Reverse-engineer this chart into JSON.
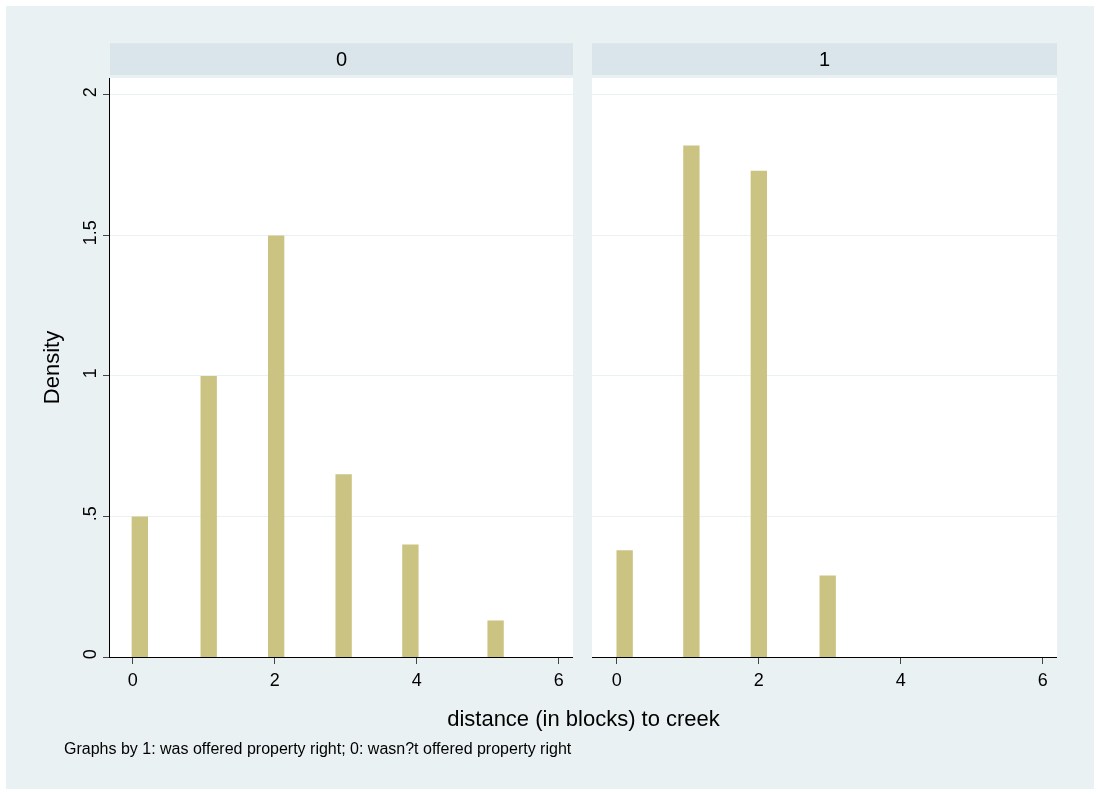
{
  "chart_data": [
    {
      "type": "bar",
      "title": "0",
      "ylabel": "Density",
      "xlabel": "distance (in blocks) to creek",
      "annotations": [
        "Graphs by 1: was offered property right; 0: wasn?t offered property right"
      ],
      "x": [
        0.1,
        1.07,
        2.02,
        2.97,
        3.91,
        5.11
      ],
      "values": [
        0.5,
        1.0,
        1.5,
        0.65,
        0.4,
        0.13
      ],
      "color": "#cbc381",
      "xlim": [
        -0.32,
        6.2
      ],
      "xticks": [
        0,
        2,
        4,
        6
      ],
      "ylim": [
        0,
        2.06
      ],
      "yticks": [
        0,
        {
          "value": 0.5,
          "label": ".5"
        },
        1,
        1.5,
        2
      ],
      "grid": "y"
    },
    {
      "type": "bar",
      "title": "1",
      "x": [
        0.11,
        1.05,
        2.0,
        2.97
      ],
      "values": [
        0.38,
        1.82,
        1.73,
        0.29
      ],
      "color": "#cbc381",
      "xlim": [
        -0.35,
        6.2
      ],
      "xticks": [
        0,
        2,
        4,
        6
      ],
      "ylim": [
        0,
        2.06
      ],
      "yticks": [
        {
          "value": 0,
          "label": null
        },
        {
          "value": 0.5,
          "label": null
        },
        {
          "value": 1,
          "label": null
        },
        {
          "value": 1.5,
          "label": null
        },
        {
          "value": 2,
          "label": null
        }
      ],
      "grid": "y",
      "tick_labels": "x"
    }
  ]
}
